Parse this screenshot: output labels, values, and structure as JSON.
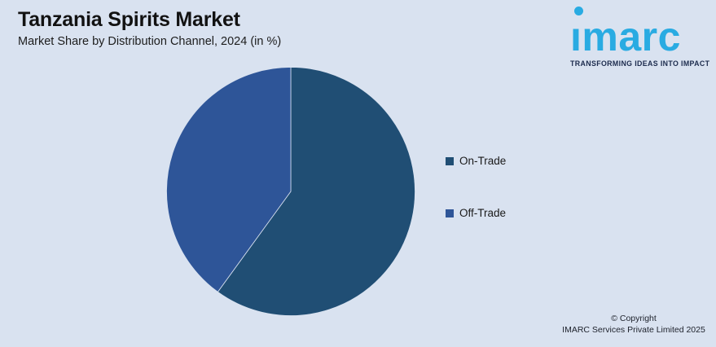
{
  "header": {
    "title": "Tanzania Spirits Market",
    "subtitle": "Market Share by Distribution Channel, 2024 (in %)"
  },
  "chart_data": {
    "type": "pie",
    "title": "Tanzania Spirits Market",
    "subtitle": "Market Share by Distribution Channel, 2024 (in %)",
    "categories": [
      "On-Trade",
      "Off-Trade"
    ],
    "values": [
      60,
      40
    ],
    "unit": "%",
    "colors": [
      "#204e74",
      "#2e5598"
    ],
    "start_angle": "12 o'clock, clockwise",
    "legend_position": "right",
    "data_labels": false
  },
  "logo": {
    "brand": "imarc",
    "tagline": "TRANSFORMING IDEAS INTO IMPACT"
  },
  "footer": {
    "copyright_line1": "© Copyright",
    "copyright_line2": "IMARC Services Private Limited 2025"
  },
  "colors": {
    "background": "#d9e2f0",
    "logo_blue": "#29abe2",
    "tagline_navy": "#1c2b4d",
    "pie_on_trade": "#204e74",
    "pie_off_trade": "#2e5598"
  }
}
